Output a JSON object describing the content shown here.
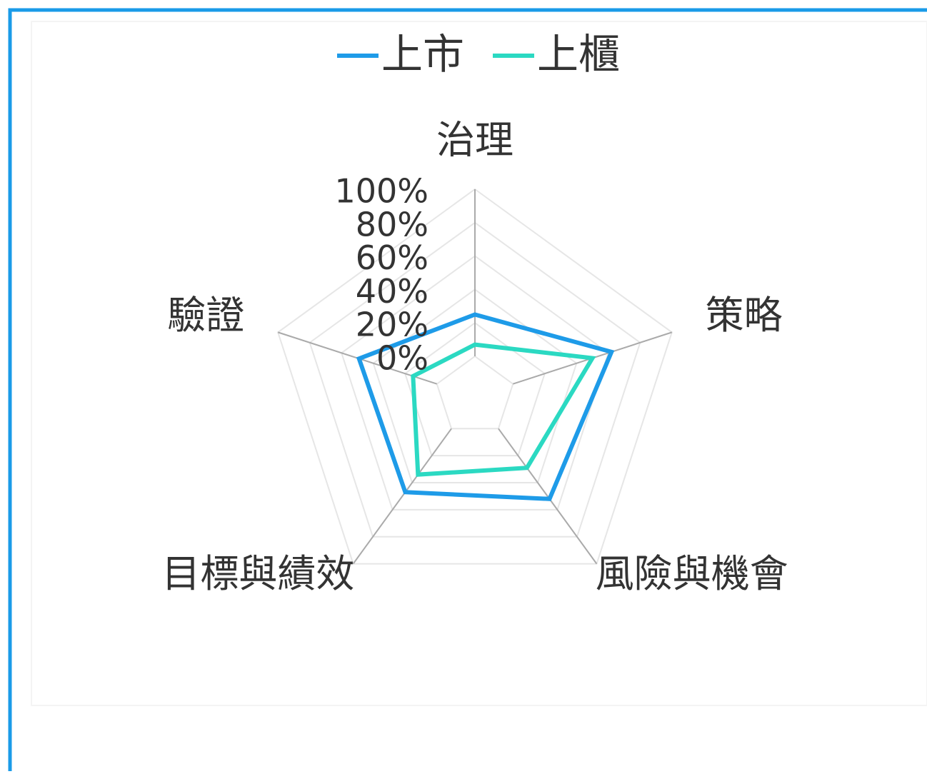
{
  "chart_data": {
    "type": "radar",
    "categories": [
      "治理",
      "策略",
      "風險與機會",
      "目標與績效",
      "驗證"
    ],
    "series": [
      {
        "name": "上市",
        "color": "#1e9be8",
        "values": [
          25,
          62,
          52,
          47,
          49
        ]
      },
      {
        "name": "上櫃",
        "color": "#2bd9c2",
        "values": [
          7,
          50,
          29,
          34,
          15
        ]
      }
    ],
    "ylim": [
      0,
      100
    ],
    "yticks": [
      {
        "value": 0,
        "label": "0%"
      },
      {
        "value": 20,
        "label": "20%"
      },
      {
        "value": 40,
        "label": "40%"
      },
      {
        "value": 60,
        "label": "60%"
      },
      {
        "value": 80,
        "label": "80%"
      },
      {
        "value": 100,
        "label": "100%"
      }
    ],
    "legend": "top"
  }
}
